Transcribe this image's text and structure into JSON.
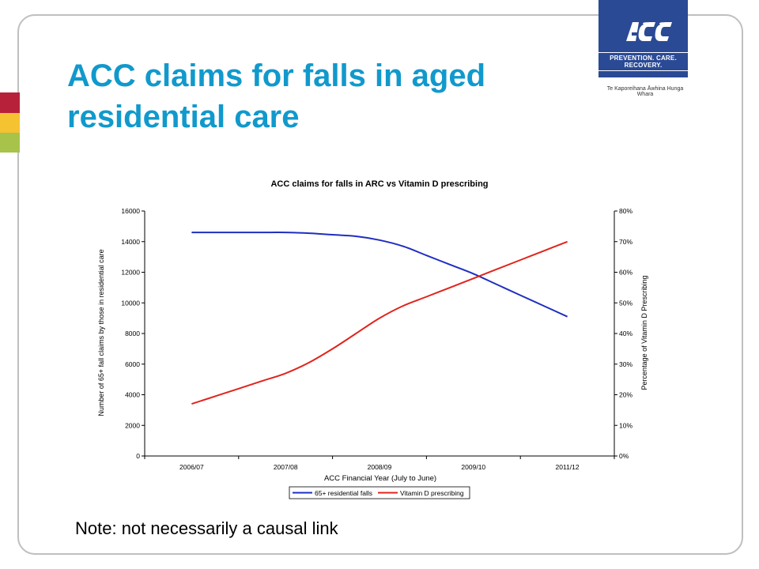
{
  "slide": {
    "title_line1": "ACC claims for falls in aged",
    "title_line2": "residential care",
    "note": "Note: not necessarily a causal link"
  },
  "logo": {
    "brand": "ACC",
    "tagline": "PREVENTION. CARE. RECOVERY.",
    "maori": "Te Kaporeihana Āwhina Hunga Whara",
    "background_color": "#2a4a95"
  },
  "colors": {
    "title": "#1199cc",
    "series_falls": "#1f2ec0",
    "series_vitd": "#e0241c",
    "accent_red": "#b8213a",
    "accent_yellow": "#f5c232",
    "accent_green": "#a7c34a"
  },
  "chart_data": {
    "type": "line",
    "title": "ACC claims for falls in ARC vs Vitamin D prescribing",
    "xlabel": "ACC Financial Year (July to June)",
    "ylabel": "Number of 65+ fall claims by those in residential care",
    "y2label": "Percentage of Vitamin D Prescribing",
    "x_ticklabels": [
      "2006/07",
      "2007/08",
      "2008/09",
      "2009/10",
      "2011/12"
    ],
    "ylim": [
      0,
      16000
    ],
    "y_ticks": [
      0,
      2000,
      4000,
      6000,
      8000,
      10000,
      12000,
      14000,
      16000
    ],
    "y2lim": [
      0,
      80
    ],
    "y2_ticks": [
      "0%",
      "10%",
      "20%",
      "30%",
      "40%",
      "50%",
      "60%",
      "70%",
      "80%"
    ],
    "grid": false,
    "legend_position": "bottom",
    "series": [
      {
        "name": "65+ residential falls",
        "axis": "left",
        "color": "#1f2ec0",
        "x": [
          0,
          0.25,
          0.5,
          0.75,
          1,
          1.25,
          1.5,
          1.75,
          2,
          2.25,
          2.5,
          2.75,
          3,
          3.25,
          3.5,
          3.75,
          4
        ],
        "values": [
          14600,
          14600,
          14600,
          14600,
          14600,
          14550,
          14450,
          14350,
          14100,
          13700,
          13100,
          12500,
          11900,
          11200,
          10500,
          9800,
          9100
        ]
      },
      {
        "name": "Vitamin D prescribing",
        "axis": "right",
        "color": "#e0241c",
        "x": [
          0,
          0.25,
          0.5,
          0.75,
          1,
          1.25,
          1.5,
          1.75,
          2,
          2.25,
          2.5,
          2.75,
          3,
          3.25,
          3.5,
          3.75,
          4
        ],
        "values": [
          17,
          19.5,
          22,
          24.5,
          27,
          30.5,
          35,
          40,
          45,
          49,
          52,
          55,
          58,
          61,
          64,
          67,
          70
        ]
      }
    ]
  }
}
